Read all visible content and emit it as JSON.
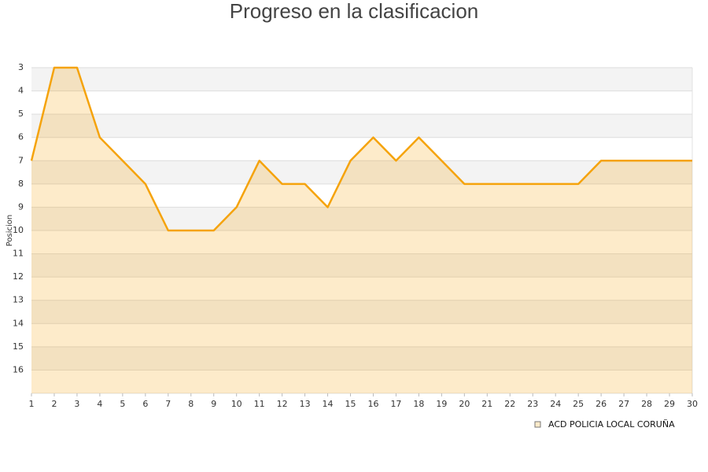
{
  "chart_data": {
    "type": "line",
    "title": "Progreso en la clasificacion",
    "y_label": "Posicion",
    "x": [
      1,
      2,
      3,
      4,
      5,
      6,
      7,
      8,
      9,
      10,
      11,
      12,
      13,
      14,
      15,
      16,
      17,
      18,
      19,
      20,
      21,
      22,
      23,
      24,
      25,
      26,
      27,
      28,
      29,
      30
    ],
    "series": [
      {
        "name": "ACD POLICIA LOCAL CORUÑA",
        "color": "#f5a30c",
        "values": [
          7,
          3,
          3,
          6,
          7,
          8,
          10,
          10,
          10,
          9,
          7,
          8,
          8,
          9,
          7,
          6,
          7,
          6,
          7,
          8,
          8,
          8,
          8,
          8,
          8,
          7,
          7,
          7,
          7,
          7
        ]
      }
    ],
    "xlim": [
      1,
      30
    ],
    "xticks": [
      1,
      2,
      3,
      4,
      5,
      6,
      7,
      8,
      9,
      10,
      11,
      12,
      13,
      14,
      15,
      16,
      17,
      18,
      19,
      20,
      21,
      22,
      23,
      24,
      25,
      26,
      27,
      28,
      29,
      30
    ],
    "ylim": [
      3,
      17
    ],
    "yticks": [
      3,
      4,
      5,
      6,
      7,
      8,
      9,
      10,
      11,
      12,
      13,
      14,
      15,
      16
    ],
    "y_inverted": true,
    "area": true
  }
}
